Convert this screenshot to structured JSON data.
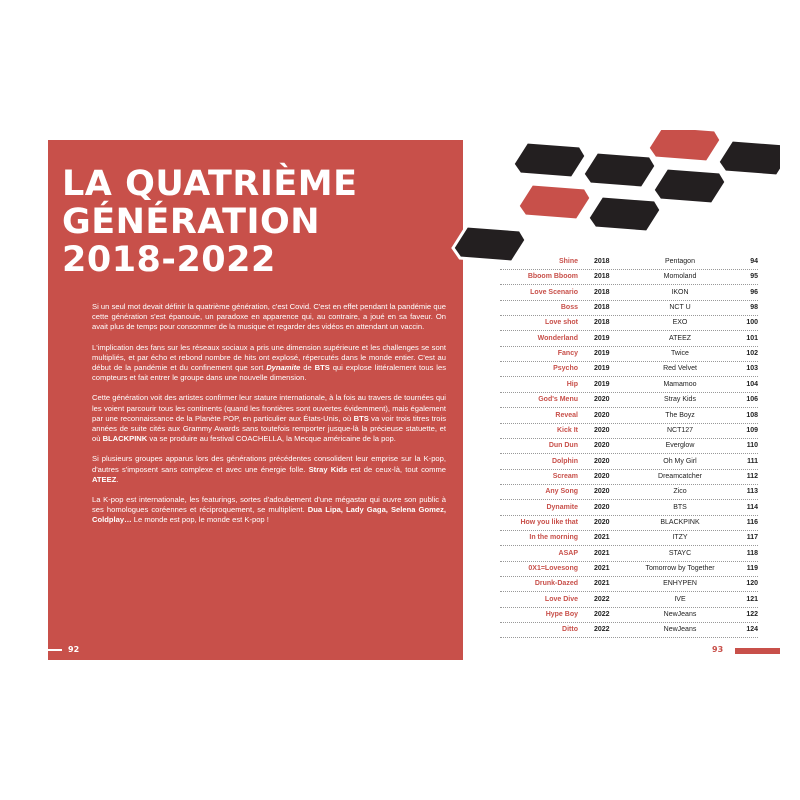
{
  "left_page": {
    "title_lines": [
      "LA QUATRIÈME",
      "GÉNÉRATION",
      "2018-2022"
    ],
    "paragraphs": [
      [
        "Si un seul mot devait définir la quatrième génération, c'est Covid. C'est en effet pendant la pandémie que cette génération s'est épanouie, un paradoxe en apparence qui, au contraire, a joué en sa faveur. On avait plus de temps pour consommer de la musique et regarder des vidéos en attendant un vaccin."
      ],
      [
        "L'implication des fans sur les réseaux sociaux a pris une dimension supérieure et les challenges se sont multipliés, et par écho et rebond nombre de hits ont explosé, répercutés dans le monde entier. C'est au début de la pandémie et du confinement que sort ",
        "Dynamite",
        " de ",
        "BTS",
        " qui explose littéralement tous les compteurs et fait entrer le groupe dans une nouvelle dimension."
      ],
      [
        "Cette génération voit des artistes confirmer leur stature internationale, à la fois au travers de tournées qui les voient parcourir tous les continents (quand les frontières sont ouvertes évidemment), mais également par une reconnaissance de la Planète POP, en particulier aux États-Unis, où ",
        "BTS",
        " va voir trois titres trois années de suite cités aux Grammy Awards sans toutefois remporter jusque-là la précieuse statuette, et où ",
        "BLACKPINK",
        " va se produire au festival COACHELLA, la Mecque américaine de la pop."
      ],
      [
        "Si plusieurs groupes apparus lors des générations précédentes consolident leur emprise sur la K-pop, d'autres s'imposent sans complexe et avec une énergie folle. ",
        "Stray Kids",
        " est de ceux-là, tout comme ",
        "ATEEZ",
        "."
      ],
      [
        "La K-pop est internationale, les featurings, sortes d'adoubement d'une mégastar qui ouvre son public à ses homologues coréennes et réciproquement, se multiplient. ",
        "Dua Lipa, Lady Gaga, Selena Gomez, Coldplay…",
        " Le monde est pop, le monde est K-pop !"
      ]
    ],
    "page_number": "92"
  },
  "right_page": {
    "table": {
      "rows": [
        [
          "Shine",
          "2018",
          "Pentagon",
          "94"
        ],
        [
          "Bboom Bboom",
          "2018",
          "Momoland",
          "95"
        ],
        [
          "Love Scenario",
          "2018",
          "IKON",
          "96"
        ],
        [
          "Boss",
          "2018",
          "NCT U",
          "98"
        ],
        [
          "Love shot",
          "2018",
          "EXO",
          "100"
        ],
        [
          "Wonderland",
          "2019",
          "ATEEZ",
          "101"
        ],
        [
          "Fancy",
          "2019",
          "Twice",
          "102"
        ],
        [
          "Psycho",
          "2019",
          "Red Velvet",
          "103"
        ],
        [
          "Hip",
          "2019",
          "Mamamoo",
          "104"
        ],
        [
          "God's Menu",
          "2020",
          "Stray Kids",
          "106"
        ],
        [
          "Reveal",
          "2020",
          "The Boyz",
          "108"
        ],
        [
          "Kick It",
          "2020",
          "NCT127",
          "109"
        ],
        [
          "Dun Dun",
          "2020",
          "Everglow",
          "110"
        ],
        [
          "Dolphin",
          "2020",
          "Oh My Girl",
          "111"
        ],
        [
          "Scream",
          "2020",
          "Dreamcatcher",
          "112"
        ],
        [
          "Any Song",
          "2020",
          "Zico",
          "113"
        ],
        [
          "Dynamite",
          "2020",
          "BTS",
          "114"
        ],
        [
          "How you like that",
          "2020",
          "BLACKPINK",
          "116"
        ],
        [
          "In the morning",
          "2021",
          "ITZY",
          "117"
        ],
        [
          "ASAP",
          "2021",
          "STAYC",
          "118"
        ],
        [
          "0X1=Lovesong",
          "2021",
          "Tomorrow by Together",
          "119"
        ],
        [
          "Drunk-Dazed",
          "2021",
          "ENHYPEN",
          "120"
        ],
        [
          "Love Dive",
          "2022",
          "IVE",
          "121"
        ],
        [
          "Hype Boy",
          "2022",
          "NewJeans",
          "122"
        ],
        [
          "Ditto",
          "2022",
          "NewJeans",
          "124"
        ]
      ]
    },
    "page_number": "93"
  }
}
